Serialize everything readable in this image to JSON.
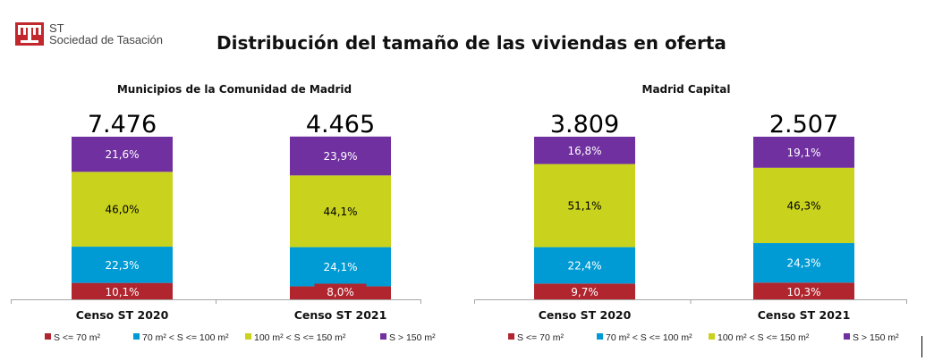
{
  "brand": {
    "line1": "ST",
    "line2": "Sociedad de Tasación",
    "color": "#C1272D"
  },
  "title": "Distribución del tamaño de las viviendas en oferta",
  "chart_data": [
    {
      "type": "bar",
      "stacked": true,
      "title": "Municipios de la Comunidad de Madrid",
      "categories": [
        "Censo ST 2020",
        "Censo ST 2021"
      ],
      "totals": [
        "7.476",
        "4.465"
      ],
      "series": [
        {
          "name": "S <= 70 m²",
          "color": "#B0252E",
          "values": [
            10.1,
            8.0
          ],
          "labels": [
            "10,1%",
            "8,0%"
          ],
          "label_color": "#ffffff"
        },
        {
          "name": "70 m² < S <= 100 m²",
          "color": "#009BD4",
          "values": [
            22.3,
            24.1
          ],
          "labels": [
            "22,3%",
            "24,1%"
          ],
          "label_color": "#ffffff"
        },
        {
          "name": "100 m² < S <= 150 m²",
          "color": "#C9D31E",
          "values": [
            46.0,
            44.1
          ],
          "labels": [
            "46,0%",
            "44,1%"
          ],
          "label_color": "#000000"
        },
        {
          "name": "S > 150 m²",
          "color": "#7030A0",
          "values": [
            21.6,
            23.9
          ],
          "labels": [
            "21,6%",
            "23,9%"
          ],
          "label_color": "#ffffff"
        }
      ],
      "ylim": [
        0,
        100
      ],
      "grid": false,
      "legend": "bottom"
    },
    {
      "type": "bar",
      "stacked": true,
      "title": "Madrid Capital",
      "categories": [
        "Censo ST 2020",
        "Censo ST 2021"
      ],
      "totals": [
        "3.809",
        "2.507"
      ],
      "series": [
        {
          "name": "S <= 70 m²",
          "color": "#B0252E",
          "values": [
            9.7,
            10.3
          ],
          "labels": [
            "9,7%",
            "10,3%"
          ],
          "label_color": "#ffffff"
        },
        {
          "name": "70 m² < S <= 100 m²",
          "color": "#009BD4",
          "values": [
            22.4,
            24.3
          ],
          "labels": [
            "22,4%",
            "24,3%"
          ],
          "label_color": "#ffffff"
        },
        {
          "name": "100 m² < S <= 150 m²",
          "color": "#C9D31E",
          "values": [
            51.1,
            46.3
          ],
          "labels": [
            "51,1%",
            "46,3%"
          ],
          "label_color": "#000000"
        },
        {
          "name": "S > 150 m²",
          "color": "#7030A0",
          "values": [
            16.8,
            19.1
          ],
          "labels": [
            "16,8%",
            "19,1%"
          ],
          "label_color": "#ffffff"
        }
      ],
      "ylim": [
        0,
        100
      ],
      "grid": false,
      "legend": "bottom"
    }
  ]
}
